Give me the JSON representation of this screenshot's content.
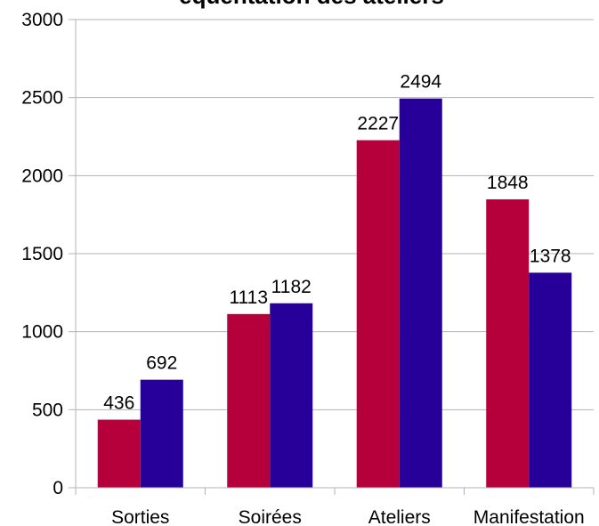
{
  "chart_data": {
    "type": "bar",
    "title": "équentation des ateliers",
    "categories": [
      "Sorties",
      "Soirées",
      "Ateliers",
      "Manifestation"
    ],
    "series": [
      {
        "values": [
          436,
          1113,
          2227,
          1848
        ],
        "color": "#b5003c"
      },
      {
        "values": [
          692,
          1182,
          2494,
          1378
        ],
        "color": "#270099"
      }
    ],
    "ylim": [
      0,
      3000
    ],
    "yticks": [
      0,
      500,
      1000,
      1500,
      2000,
      2500,
      3000
    ],
    "ytick_labels": [
      "0",
      "500",
      "1000",
      "1500",
      "2000",
      "2500",
      "3000"
    ],
    "grid": true,
    "data_labels": true,
    "legend": "none"
  }
}
